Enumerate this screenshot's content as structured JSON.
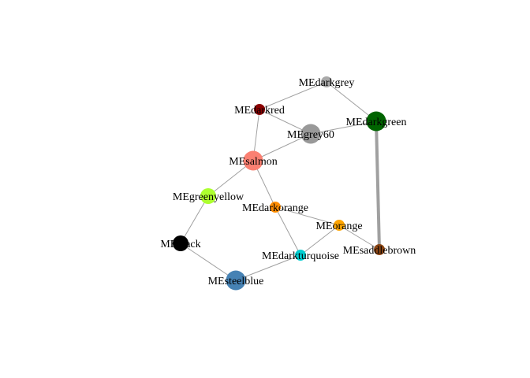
{
  "nodes": [
    {
      "id": "MEdarkgrey",
      "label": "MEdarkgrey",
      "color": "#a9a9a9",
      "size": "small"
    },
    {
      "id": "MEdarkred",
      "label": "MEdarkred",
      "color": "#8b0000",
      "size": "small"
    },
    {
      "id": "MEgrey60",
      "label": "MEgrey60",
      "color": "#999999",
      "size": "large"
    },
    {
      "id": "MEdarkgreen",
      "label": "MEdarkgreen",
      "color": "#006400",
      "size": "large"
    },
    {
      "id": "MEsalmon",
      "label": "MEsalmon",
      "color": "#fa8072",
      "size": "large"
    },
    {
      "id": "MEgreenyellow",
      "label": "MEgreenyellow",
      "color": "#adff2f",
      "size": "medium"
    },
    {
      "id": "MEdarkorange",
      "label": "MEdarkorange",
      "color": "#ff8c00",
      "size": "small"
    },
    {
      "id": "MEorange",
      "label": "MEorange",
      "color": "#ffa500",
      "size": "small"
    },
    {
      "id": "MEblack",
      "label": "MEblack",
      "color": "#000000",
      "size": "medium"
    },
    {
      "id": "MEdarkturquoise",
      "label": "MEdarkturquoise",
      "color": "#00ced1",
      "size": "small"
    },
    {
      "id": "MEsaddlebrown",
      "label": "MEsaddlebrown",
      "color": "#8b4513",
      "size": "small"
    },
    {
      "id": "MEsteelblue",
      "label": "MEsteelblue",
      "color": "#4682b4",
      "size": "large"
    }
  ],
  "edges": [
    {
      "source": "MEdarkgrey",
      "target": "MEdarkred",
      "weight": "thin"
    },
    {
      "source": "MEdarkgrey",
      "target": "MEdarkgreen",
      "weight": "thin"
    },
    {
      "source": "MEdarkred",
      "target": "MEgrey60",
      "weight": "thin"
    },
    {
      "source": "MEdarkred",
      "target": "MEsalmon",
      "weight": "thin"
    },
    {
      "source": "MEgrey60",
      "target": "MEdarkgreen",
      "weight": "thin"
    },
    {
      "source": "MEgrey60",
      "target": "MEsalmon",
      "weight": "thin"
    },
    {
      "source": "MEdarkgreen",
      "target": "MEsaddlebrown",
      "weight": "thick"
    },
    {
      "source": "MEsalmon",
      "target": "MEgreenyellow",
      "weight": "thin"
    },
    {
      "source": "MEsalmon",
      "target": "MEdarkorange",
      "weight": "thin"
    },
    {
      "source": "MEgreenyellow",
      "target": "MEblack",
      "weight": "thin"
    },
    {
      "source": "MEdarkorange",
      "target": "MEorange",
      "weight": "thin"
    },
    {
      "source": "MEdarkorange",
      "target": "MEdarkturquoise",
      "weight": "thin"
    },
    {
      "source": "MEorange",
      "target": "MEsaddlebrown",
      "weight": "thin"
    },
    {
      "source": "MEorange",
      "target": "MEdarkturquoise",
      "weight": "thin"
    },
    {
      "source": "MEblack",
      "target": "MEsteelblue",
      "weight": "thin"
    },
    {
      "source": "MEdarkturquoise",
      "target": "MEsteelblue",
      "weight": "thin"
    }
  ],
  "edge_color": "#a0a0a0"
}
